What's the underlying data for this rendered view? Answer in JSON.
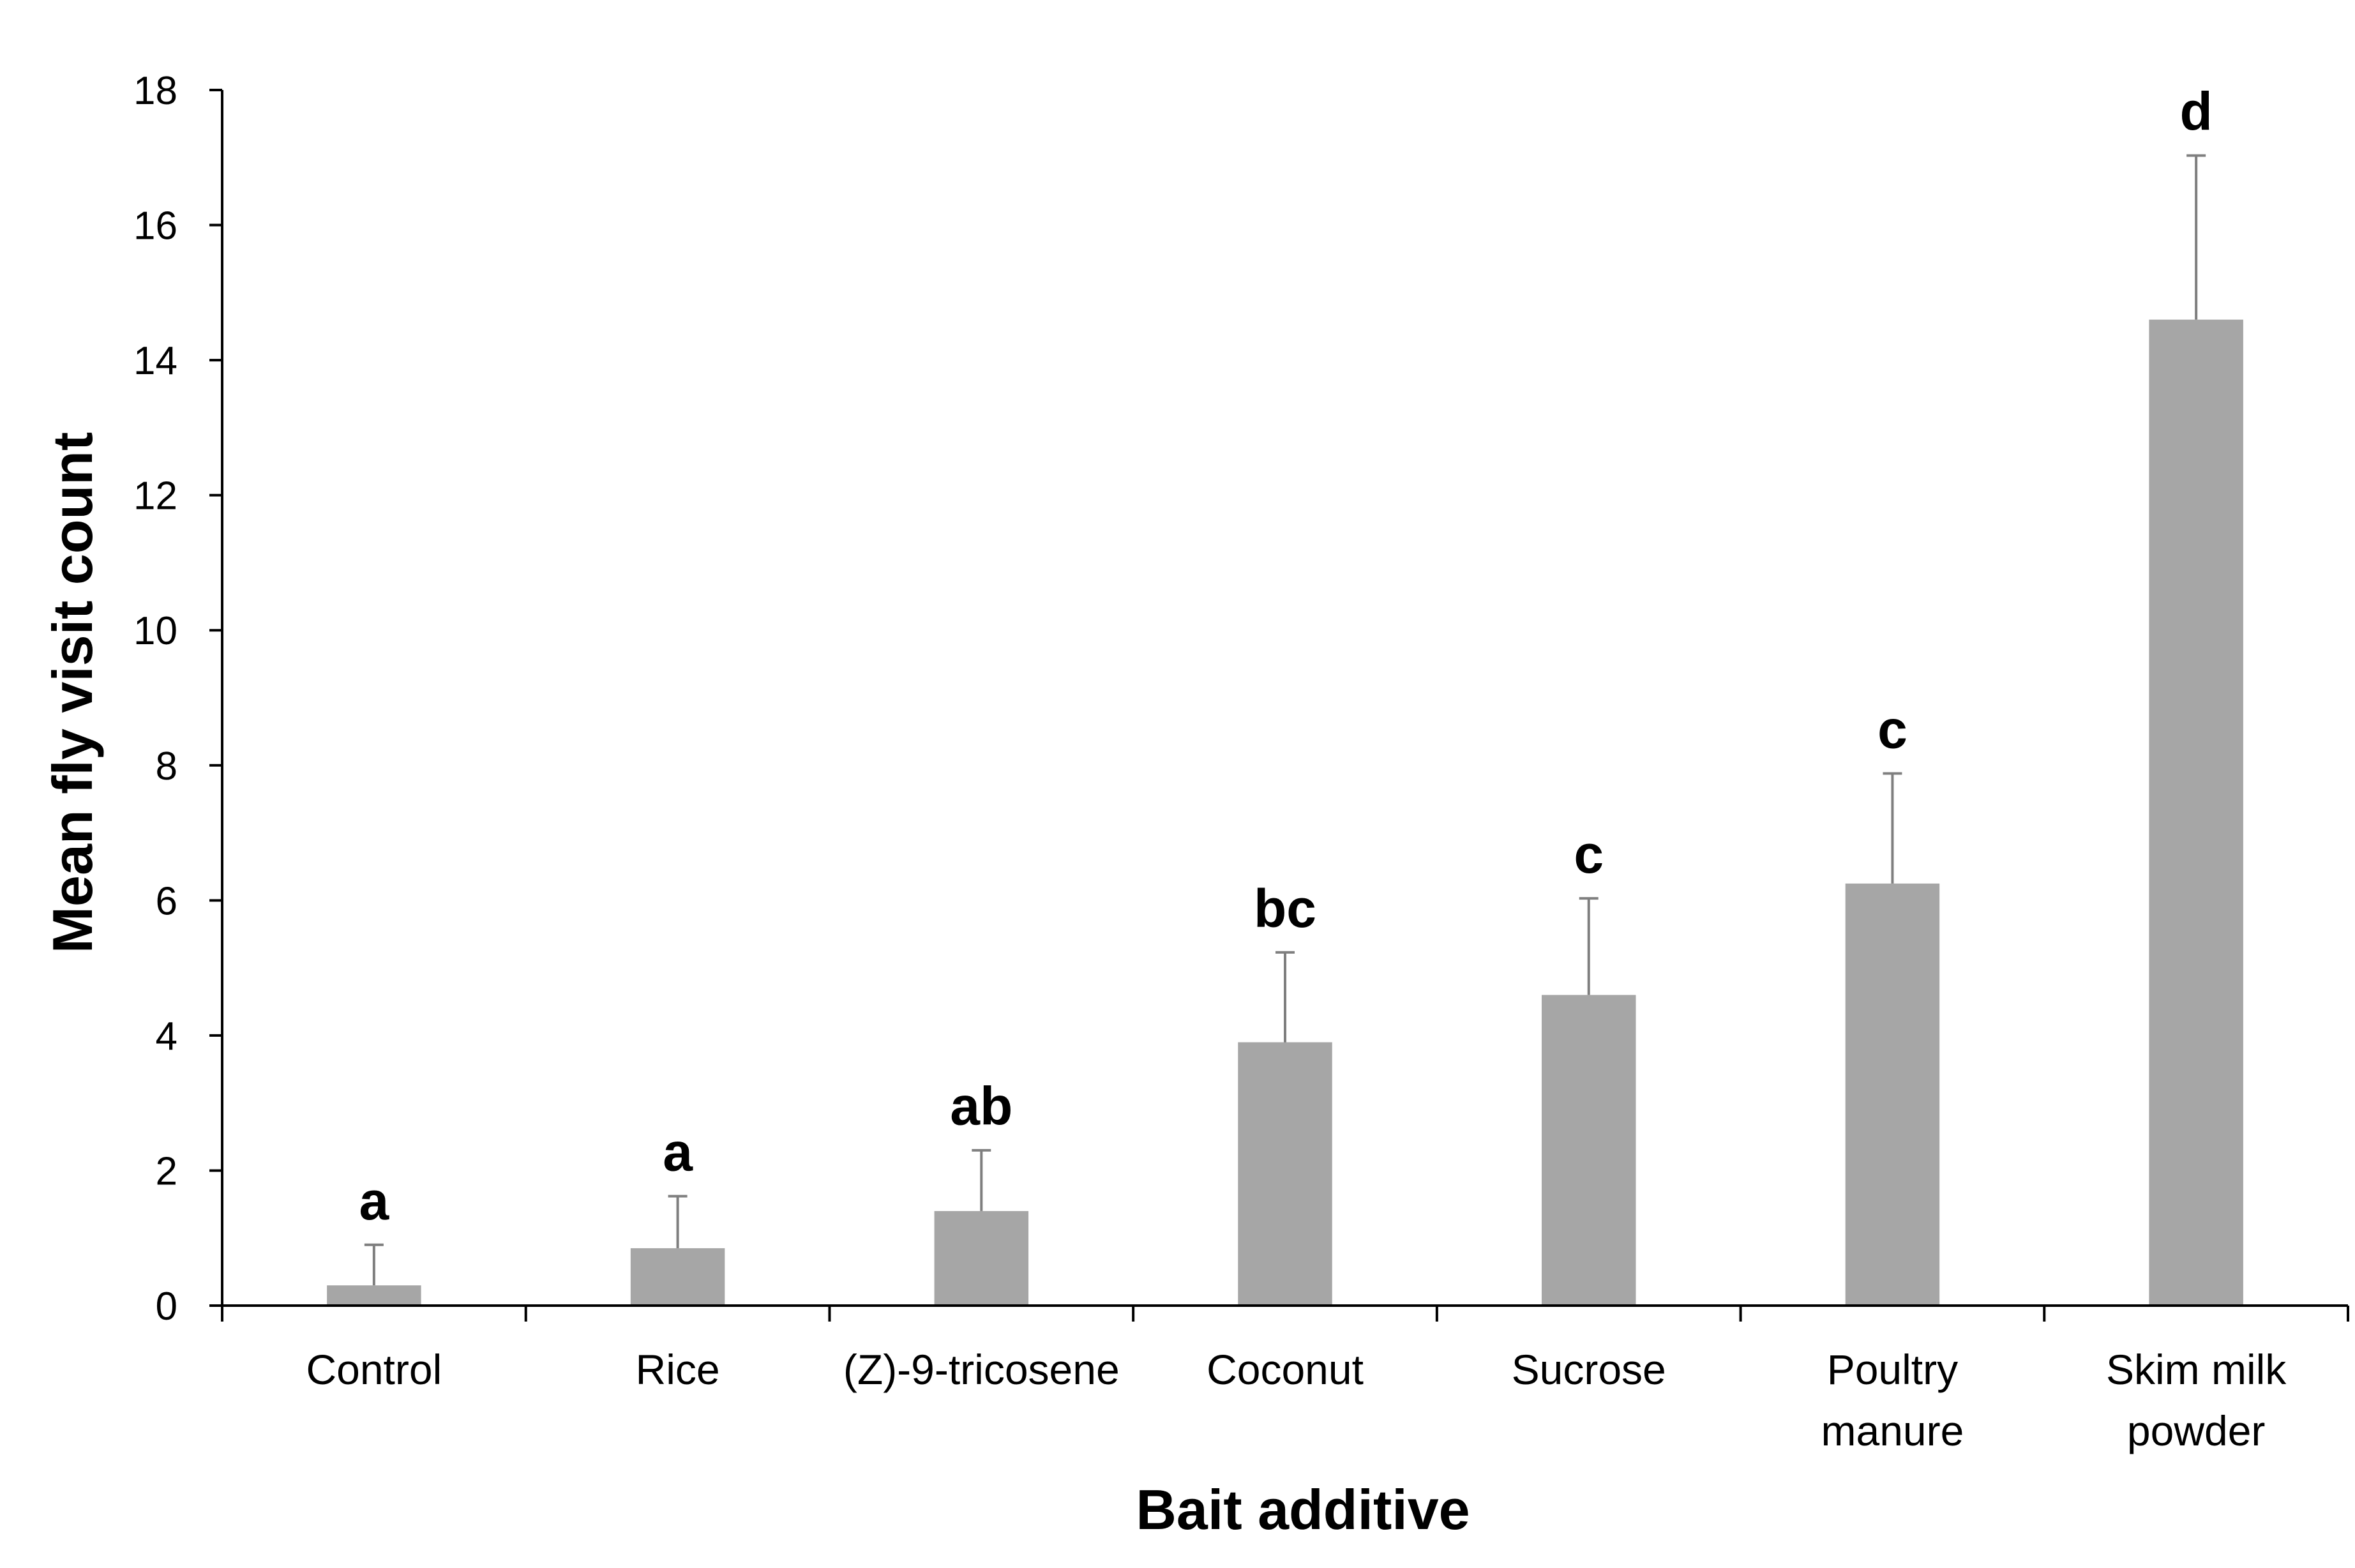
{
  "chart_data": {
    "type": "bar",
    "title": "",
    "xlabel": "Bait additive",
    "ylabel": "Mean fly visit count",
    "ylim": [
      0,
      18
    ],
    "yticks": [
      0,
      2,
      4,
      6,
      8,
      10,
      12,
      14,
      16,
      18
    ],
    "ytick_labels": [
      "0",
      "2",
      "4",
      "6",
      "8",
      "10",
      "12",
      "14",
      "16",
      "18"
    ],
    "grid": false,
    "legend": "none",
    "bar_color": "#a6a6a6",
    "errorbar_color": "#7f7f7f",
    "axis_color": "#000000",
    "categories": [
      {
        "lines": [
          "Control"
        ]
      },
      {
        "lines": [
          "Rice"
        ]
      },
      {
        "lines": [
          "(Z)-9-tricosene"
        ]
      },
      {
        "lines": [
          "Coconut"
        ]
      },
      {
        "lines": [
          "Sucrose"
        ]
      },
      {
        "lines": [
          "Poultry",
          "manure"
        ]
      },
      {
        "lines": [
          "Skim milk",
          "powder"
        ]
      }
    ],
    "values": [
      0.3,
      0.85,
      1.4,
      3.9,
      4.6,
      6.25,
      14.6
    ],
    "error_upper": [
      0.6,
      0.77,
      0.9,
      1.33,
      1.43,
      1.63,
      2.43
    ],
    "significance_labels": [
      "a",
      "a",
      "ab",
      "bc",
      "c",
      "c",
      "d"
    ]
  }
}
